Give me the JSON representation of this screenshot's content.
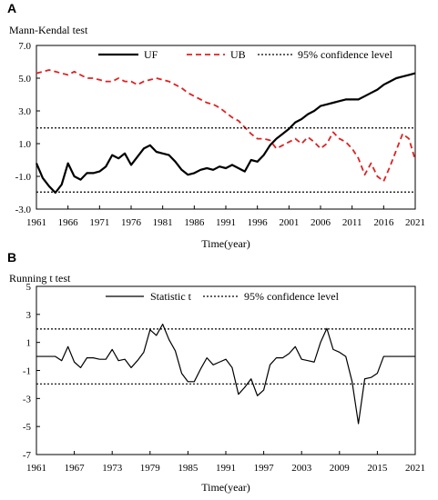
{
  "chart_data": [
    {
      "type": "line",
      "panel_label": "A",
      "title": "Mann-Kendal  test",
      "xlabel": "Time(year)",
      "ylabel": "",
      "xlim": [
        1961,
        2021
      ],
      "ylim": [
        -3.0,
        7.0
      ],
      "xticks": [
        1961,
        1966,
        1971,
        1976,
        1981,
        1986,
        1991,
        1996,
        2001,
        2006,
        2011,
        2016,
        2021
      ],
      "yticks": [
        "-3.0",
        "-1.0",
        "1.0",
        "3.0",
        "5.0",
        "7.0"
      ],
      "grid": false,
      "legend": "top",
      "x": [
        1961,
        1962,
        1963,
        1964,
        1965,
        1966,
        1967,
        1968,
        1969,
        1970,
        1971,
        1972,
        1973,
        1974,
        1975,
        1976,
        1977,
        1978,
        1979,
        1980,
        1981,
        1982,
        1983,
        1984,
        1985,
        1986,
        1987,
        1988,
        1989,
        1990,
        1991,
        1992,
        1993,
        1994,
        1995,
        1996,
        1997,
        1998,
        1999,
        2000,
        2001,
        2002,
        2003,
        2004,
        2005,
        2006,
        2007,
        2008,
        2009,
        2010,
        2011,
        2012,
        2013,
        2014,
        2015,
        2016,
        2017,
        2018,
        2019,
        2020,
        2021
      ],
      "series": [
        {
          "name": "UF",
          "style": "solid",
          "color": "#000000",
          "values": [
            -0.2,
            -1.1,
            -1.6,
            -2.0,
            -1.5,
            -0.2,
            -1.0,
            -1.2,
            -0.8,
            -0.8,
            -0.7,
            -0.4,
            0.3,
            0.1,
            0.4,
            -0.3,
            0.2,
            0.7,
            0.9,
            0.5,
            0.4,
            0.3,
            -0.1,
            -0.6,
            -0.9,
            -0.8,
            -0.6,
            -0.5,
            -0.6,
            -0.4,
            -0.5,
            -0.3,
            -0.5,
            -0.7,
            0.0,
            -0.1,
            0.3,
            0.9,
            1.3,
            1.6,
            1.9,
            2.3,
            2.5,
            2.8,
            3.0,
            3.3,
            3.4,
            3.5,
            3.6,
            3.7,
            3.7,
            3.7,
            3.9,
            4.1,
            4.3,
            4.6,
            4.8,
            5.0,
            5.1,
            5.2,
            5.3
          ]
        },
        {
          "name": "UB",
          "style": "dashed",
          "color": "#e02020",
          "values": [
            5.3,
            5.4,
            5.5,
            5.4,
            5.3,
            5.2,
            5.4,
            5.2,
            5.0,
            5.0,
            4.9,
            4.8,
            4.8,
            5.0,
            4.8,
            4.8,
            4.6,
            4.8,
            4.9,
            5.0,
            4.9,
            4.8,
            4.6,
            4.4,
            4.1,
            3.9,
            3.7,
            3.5,
            3.4,
            3.2,
            2.9,
            2.6,
            2.4,
            2.0,
            1.6,
            1.3,
            1.3,
            1.2,
            0.7,
            0.9,
            1.1,
            1.3,
            1.0,
            1.4,
            1.1,
            0.7,
            1.0,
            1.7,
            1.3,
            1.1,
            0.7,
            0.1,
            -0.9,
            -0.2,
            -1.0,
            -1.3,
            -0.4,
            0.6,
            1.6,
            1.3,
            0.0
          ]
        },
        {
          "name": "95% confidence level",
          "style": "dotted",
          "color": "#000000",
          "values_hline": [
            1.96,
            -1.96
          ]
        }
      ]
    },
    {
      "type": "line",
      "panel_label": "B",
      "title": "Running  t  test",
      "xlabel": "Time(year)",
      "ylabel": "",
      "xlim": [
        1961,
        2021
      ],
      "ylim": [
        -7,
        5
      ],
      "xticks": [
        1961,
        1967,
        1973,
        1979,
        1985,
        1991,
        1997,
        2003,
        2009,
        2015,
        2021
      ],
      "yticks": [
        "-7",
        "-5",
        "-3",
        "-1",
        "1",
        "3",
        "5"
      ],
      "grid": false,
      "legend": "top",
      "x": [
        1961,
        1962,
        1963,
        1964,
        1965,
        1966,
        1967,
        1968,
        1969,
        1970,
        1971,
        1972,
        1973,
        1974,
        1975,
        1976,
        1977,
        1978,
        1979,
        1980,
        1981,
        1982,
        1983,
        1984,
        1985,
        1986,
        1987,
        1988,
        1989,
        1990,
        1991,
        1992,
        1993,
        1994,
        1995,
        1996,
        1997,
        1998,
        1999,
        2000,
        2001,
        2002,
        2003,
        2004,
        2005,
        2006,
        2007,
        2008,
        2009,
        2010,
        2011,
        2012,
        2013,
        2014,
        2015,
        2016,
        2017,
        2018,
        2019,
        2020,
        2021
      ],
      "series": [
        {
          "name": "Statistic t",
          "style": "solid",
          "color": "#000000",
          "values": [
            0.0,
            0.0,
            0.0,
            0.0,
            -0.3,
            0.7,
            -0.4,
            -0.8,
            -0.1,
            -0.1,
            -0.2,
            -0.2,
            0.5,
            -0.3,
            -0.2,
            -0.8,
            -0.3,
            0.3,
            1.9,
            1.5,
            2.3,
            1.2,
            0.4,
            -1.2,
            -1.8,
            -1.8,
            -0.9,
            -0.1,
            -0.6,
            -0.4,
            -0.2,
            -0.8,
            -2.7,
            -2.2,
            -1.6,
            -2.8,
            -2.4,
            -0.6,
            -0.1,
            -0.1,
            0.2,
            0.7,
            -0.2,
            -0.3,
            -0.4,
            1.0,
            2.0,
            0.5,
            0.3,
            0.0,
            -1.8,
            -4.8,
            -1.6,
            -1.5,
            -1.2,
            0.0,
            0.0,
            0.0,
            0.0,
            0.0,
            0.0
          ]
        },
        {
          "name": "95% confidence level",
          "style": "dotted",
          "color": "#000000",
          "values_hline": [
            1.96,
            -1.96
          ]
        }
      ]
    }
  ]
}
